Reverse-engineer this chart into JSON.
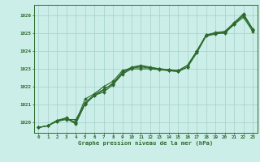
{
  "xlabel": "Graphe pression niveau de la mer (hPa)",
  "bg_color": "#cceee8",
  "line_color": "#2d6a2d",
  "grid_color": "#aad4ce",
  "ylim": [
    1019.4,
    1026.6
  ],
  "xlim": [
    -0.5,
    23.5
  ],
  "yticks": [
    1020,
    1021,
    1022,
    1023,
    1024,
    1025,
    1026
  ],
  "xticks": [
    0,
    1,
    2,
    3,
    4,
    5,
    6,
    7,
    8,
    9,
    10,
    11,
    12,
    13,
    14,
    15,
    16,
    17,
    18,
    19,
    20,
    21,
    22,
    23
  ],
  "series": [
    [
      1019.7,
      1019.8,
      1020.1,
      1020.2,
      1019.9,
      1021.0,
      1021.5,
      1021.8,
      1022.2,
      1022.8,
      1023.1,
      1023.2,
      1023.1,
      1023.0,
      1022.95,
      1022.9,
      1023.2,
      1024.0,
      1024.9,
      1025.0,
      1025.1,
      1025.55,
      1026.0,
      1025.2
    ],
    [
      1019.7,
      1019.8,
      1020.05,
      1020.2,
      1020.0,
      1021.3,
      1021.6,
      1022.0,
      1022.3,
      1022.9,
      1023.05,
      1023.1,
      1023.05,
      1023.0,
      1022.9,
      1022.85,
      1023.1,
      1024.0,
      1024.9,
      1025.0,
      1025.0,
      1025.5,
      1025.9,
      1025.1
    ],
    [
      1019.7,
      1019.8,
      1020.1,
      1020.25,
      1019.95,
      1021.1,
      1021.55,
      1021.85,
      1022.15,
      1022.75,
      1023.05,
      1023.15,
      1023.05,
      1023.0,
      1022.95,
      1022.9,
      1023.2,
      1024.0,
      1024.9,
      1025.05,
      1025.1,
      1025.6,
      1026.1,
      1025.25
    ],
    [
      1019.7,
      1019.8,
      1020.05,
      1020.15,
      1020.15,
      1021.05,
      1021.5,
      1021.7,
      1022.1,
      1022.7,
      1023.0,
      1023.0,
      1023.0,
      1022.95,
      1022.9,
      1022.85,
      1023.1,
      1023.9,
      1024.85,
      1024.95,
      1025.05,
      1025.5,
      1026.05,
      1025.2
    ]
  ],
  "marker": "D",
  "markersize": 2.0,
  "linewidth": 0.8,
  "tick_fontsize": 4.2,
  "label_fontsize": 5.2
}
